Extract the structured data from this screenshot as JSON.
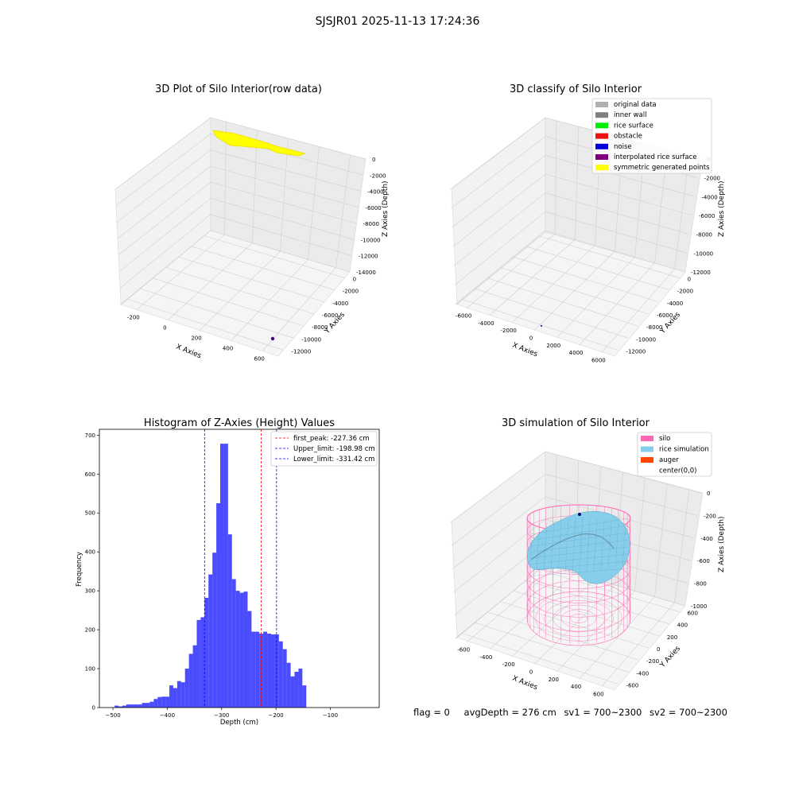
{
  "figure": {
    "suptitle": "SJSJR01 2025-11-13 17:24:36"
  },
  "panels": {
    "raw": {
      "title": "3D Plot of Silo Interior(row data)",
      "xlabel": "X Axies",
      "ylabel": "Y Axies",
      "zlabel": "Z Axies (Depth)",
      "xticks": [
        "-200",
        "0",
        "200",
        "400",
        "600"
      ],
      "yticks": [
        "0",
        "-2000",
        "-4000",
        "-6000",
        "-8000",
        "-10000",
        "-12000"
      ],
      "zticks": [
        "0",
        "-2000",
        "-4000",
        "-6000",
        "-8000",
        "-10000",
        "-12000",
        "-14000"
      ]
    },
    "classify": {
      "title": "3D classify of Silo Interior",
      "xlabel": "X Axies",
      "ylabel": "Y Axies",
      "zlabel": "Z Axies (Depth)",
      "xticks": [
        "-6000",
        "-4000",
        "-2000",
        "0",
        "2000",
        "4000",
        "6000"
      ],
      "yticks": [
        "0",
        "-2000",
        "-4000",
        "-6000",
        "-8000",
        "-10000",
        "-12000"
      ],
      "zticks": [
        "0",
        "-2000",
        "-4000",
        "-6000",
        "-8000",
        "-10000",
        "-12000"
      ],
      "legend": [
        {
          "label": "original data",
          "color": "#b0b0b0"
        },
        {
          "label": "inner wall",
          "color": "#808080"
        },
        {
          "label": "rice surface",
          "color": "#00ee00"
        },
        {
          "label": "obstacle",
          "color": "#ee1111"
        },
        {
          "label": "noise",
          "color": "#0000dd"
        },
        {
          "label": "interpolated rice surface",
          "color": "#800080"
        },
        {
          "label": "symmetric generated points",
          "color": "#ffff00"
        }
      ]
    },
    "simulation": {
      "title": "3D simulation of Silo Interior",
      "xlabel": "X Axies",
      "ylabel": "Y Axies",
      "zlabel": "Z Axies (Depth)",
      "xticks": [
        "-600",
        "-400",
        "-200",
        "0",
        "200",
        "400",
        "600"
      ],
      "yticks": [
        "600",
        "400",
        "200",
        "0",
        "-200",
        "-400",
        "-600"
      ],
      "zticks": [
        "0",
        "-200",
        "-400",
        "-600",
        "-800",
        "-1000"
      ],
      "legend": [
        {
          "label": "silo",
          "color": "#ff69b4"
        },
        {
          "label": "rice simulation",
          "color": "#87ceeb"
        },
        {
          "label": "auger",
          "color": "#ff4500"
        },
        {
          "label": "center(0,0)",
          "color": ""
        }
      ]
    }
  },
  "chart_data": [
    {
      "type": "bar",
      "title": "Histogram of Z-Axies (Height) Values",
      "xlabel": "Depth (cm)",
      "ylabel": "Frequency",
      "bar_color": "#0000ff",
      "xlim": [
        -525,
        -10
      ],
      "ylim": [
        0,
        715
      ],
      "xticks": [
        -500,
        -400,
        -300,
        -200,
        -100
      ],
      "yticks": [
        0,
        100,
        200,
        300,
        400,
        500,
        600,
        700
      ],
      "bin_start": -497,
      "bin_width": 7.2,
      "values": [
        5,
        3,
        5,
        8,
        8,
        8,
        8,
        12,
        12,
        15,
        22,
        27,
        28,
        28,
        57,
        50,
        68,
        65,
        100,
        138,
        160,
        225,
        232,
        282,
        342,
        398,
        525,
        678,
        678,
        445,
        330,
        300,
        295,
        298,
        248,
        195,
        195,
        190,
        195,
        190,
        188,
        188,
        170,
        150,
        115,
        80,
        92,
        100,
        57
      ],
      "vlines": [
        {
          "label": "first_peak: -227.36 cm",
          "x": -227.36,
          "color": "#ff0000"
        },
        {
          "label": "Upper_limit: -198.98 cm",
          "x": -198.98,
          "color": "#0000ff"
        },
        {
          "label": "Lower_limit: -331.42 cm",
          "x": -331.42,
          "color": "#0000ff"
        }
      ],
      "legend_position": "upper right"
    }
  ],
  "status": {
    "flag": "flag = 0",
    "avg_depth": "avgDepth = 276 cm",
    "sv1": "sv1 = 700~2300",
    "sv2": "sv2 = 700~2300"
  }
}
